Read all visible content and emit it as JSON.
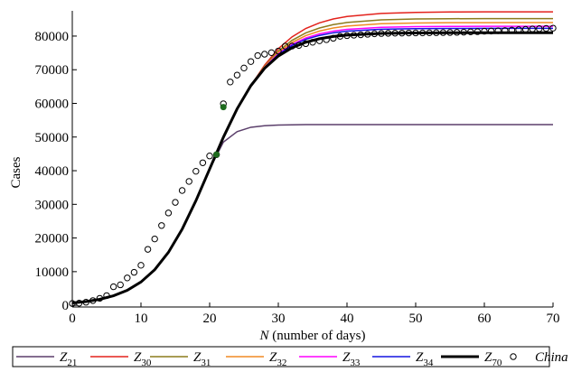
{
  "chart_data": {
    "type": "line",
    "x_label": "N (number of days)",
    "y_label": "Cases",
    "xlim": [
      0,
      70
    ],
    "xticks": [
      0,
      10,
      20,
      30,
      40,
      50,
      60,
      70
    ],
    "ylim": [
      -500,
      87500
    ],
    "yticks": [
      0,
      10000,
      20000,
      30000,
      40000,
      50000,
      60000,
      70000,
      80000
    ],
    "legend": "bottom",
    "x": [
      0,
      2,
      4,
      6,
      8,
      10,
      12,
      14,
      16,
      18,
      20,
      22,
      24,
      26,
      28,
      30,
      32,
      34,
      36,
      38,
      40,
      45,
      50,
      55,
      60,
      65,
      70
    ],
    "series": [
      {
        "name": "Z21",
        "color": "#5b3f6b",
        "values": [
          702,
          1122,
          1786,
          2833,
          4453,
          6923,
          10574,
          15743,
          22619,
          31082,
          40500,
          48500,
          51600,
          52900,
          53350,
          53550,
          53640,
          53680,
          53700,
          53700,
          53700,
          53700,
          53700,
          53700,
          53700,
          53700,
          53700
        ]
      },
      {
        "name": "Z30",
        "color": "#e3221c",
        "values": [
          702,
          1122,
          1786,
          2833,
          4453,
          6923,
          10574,
          15743,
          22619,
          31082,
          40500,
          49923,
          58378,
          65259,
          71353,
          76245,
          79769,
          82262,
          83922,
          85090,
          85816,
          86736,
          87041,
          87149,
          87195,
          87200,
          87200
        ]
      },
      {
        "name": "Z31",
        "color": "#8c7b1c",
        "values": [
          702,
          1122,
          1786,
          2833,
          4453,
          6923,
          10574,
          15743,
          22619,
          31082,
          40500,
          49923,
          58378,
          65259,
          71053,
          75545,
          78729,
          80942,
          82402,
          83410,
          84036,
          84816,
          85071,
          85159,
          85195,
          85200,
          85200
        ]
      },
      {
        "name": "Z32",
        "color": "#f08a24",
        "values": [
          702,
          1122,
          1786,
          2833,
          4453,
          6923,
          10574,
          15743,
          22619,
          31082,
          40500,
          49923,
          58378,
          65259,
          70873,
          75125,
          78105,
          80150,
          81490,
          82402,
          82968,
          83664,
          83889,
          83965,
          83995,
          84000,
          84000
        ]
      },
      {
        "name": "Z33",
        "color": "#ff00ff",
        "values": [
          702,
          1122,
          1786,
          2833,
          4453,
          6923,
          10574,
          15743,
          22619,
          31082,
          40500,
          49923,
          58378,
          65259,
          70708,
          74740,
          77533,
          79424,
          80654,
          81478,
          81989,
          82608,
          82806,
          82871,
          82895,
          82900,
          82900
        ]
      },
      {
        "name": "Z34",
        "color": "#1414e0",
        "values": [
          702,
          1122,
          1786,
          2833,
          4453,
          6923,
          10574,
          15743,
          22619,
          31082,
          40500,
          49923,
          58378,
          65259,
          70618,
          74530,
          77221,
          79028,
          80198,
          80974,
          81455,
          82032,
          82215,
          82274,
          82295,
          82300,
          82300
        ]
      },
      {
        "name": "Z70",
        "color": "#000000",
        "values": [
          702,
          1122,
          1786,
          2833,
          4453,
          6923,
          10574,
          15743,
          22619,
          31082,
          40500,
          49923,
          58378,
          65259,
          70423,
          74075,
          76545,
          78170,
          79210,
          79882,
          80298,
          80784,
          80934,
          80980,
          80995,
          81000,
          81000
        ]
      },
      {
        "name": "China",
        "type": "scatter",
        "color": "#000000",
        "x": [
          0,
          1,
          2,
          3,
          4,
          5,
          6,
          7,
          8,
          9,
          10,
          11,
          12,
          13,
          14,
          15,
          16,
          17,
          18,
          19,
          20,
          21,
          22,
          23,
          24,
          25,
          26,
          27,
          28,
          29,
          30,
          31,
          32,
          33,
          34,
          35,
          36,
          37,
          38,
          39,
          40,
          41,
          42,
          43,
          44,
          45,
          46,
          47,
          48,
          49,
          50,
          51,
          52,
          53,
          54,
          55,
          56,
          57,
          58,
          59,
          60,
          61,
          62,
          63,
          64,
          65,
          66,
          67,
          68,
          69,
          70
        ],
        "values": [
          548,
          643,
          920,
          1406,
          2075,
          2877,
          5509,
          6087,
          8141,
          9802,
          11891,
          16630,
          19716,
          23707,
          27440,
          30587,
          34110,
          36814,
          39829,
          42354,
          44386,
          44759,
          59895,
          66358,
          68413,
          70513,
          72434,
          74211,
          74619,
          75077,
          75550,
          77001,
          77022,
          77241,
          77754,
          78166,
          78600,
          78928,
          79356,
          79932,
          80136,
          80261,
          80386,
          80537,
          80690,
          80770,
          80823,
          80860,
          80887,
          80921,
          80932,
          80945,
          80977,
          81003,
          81033,
          81058,
          81102,
          81156,
          81250,
          81305,
          81435,
          81498,
          81591,
          81661,
          81782,
          81897,
          81999,
          82122,
          82198,
          82279,
          82361
        ]
      }
    ],
    "highlights": {
      "color": "#1e6b1e",
      "x": [
        21,
        22
      ],
      "y": [
        44800,
        58900
      ]
    }
  }
}
